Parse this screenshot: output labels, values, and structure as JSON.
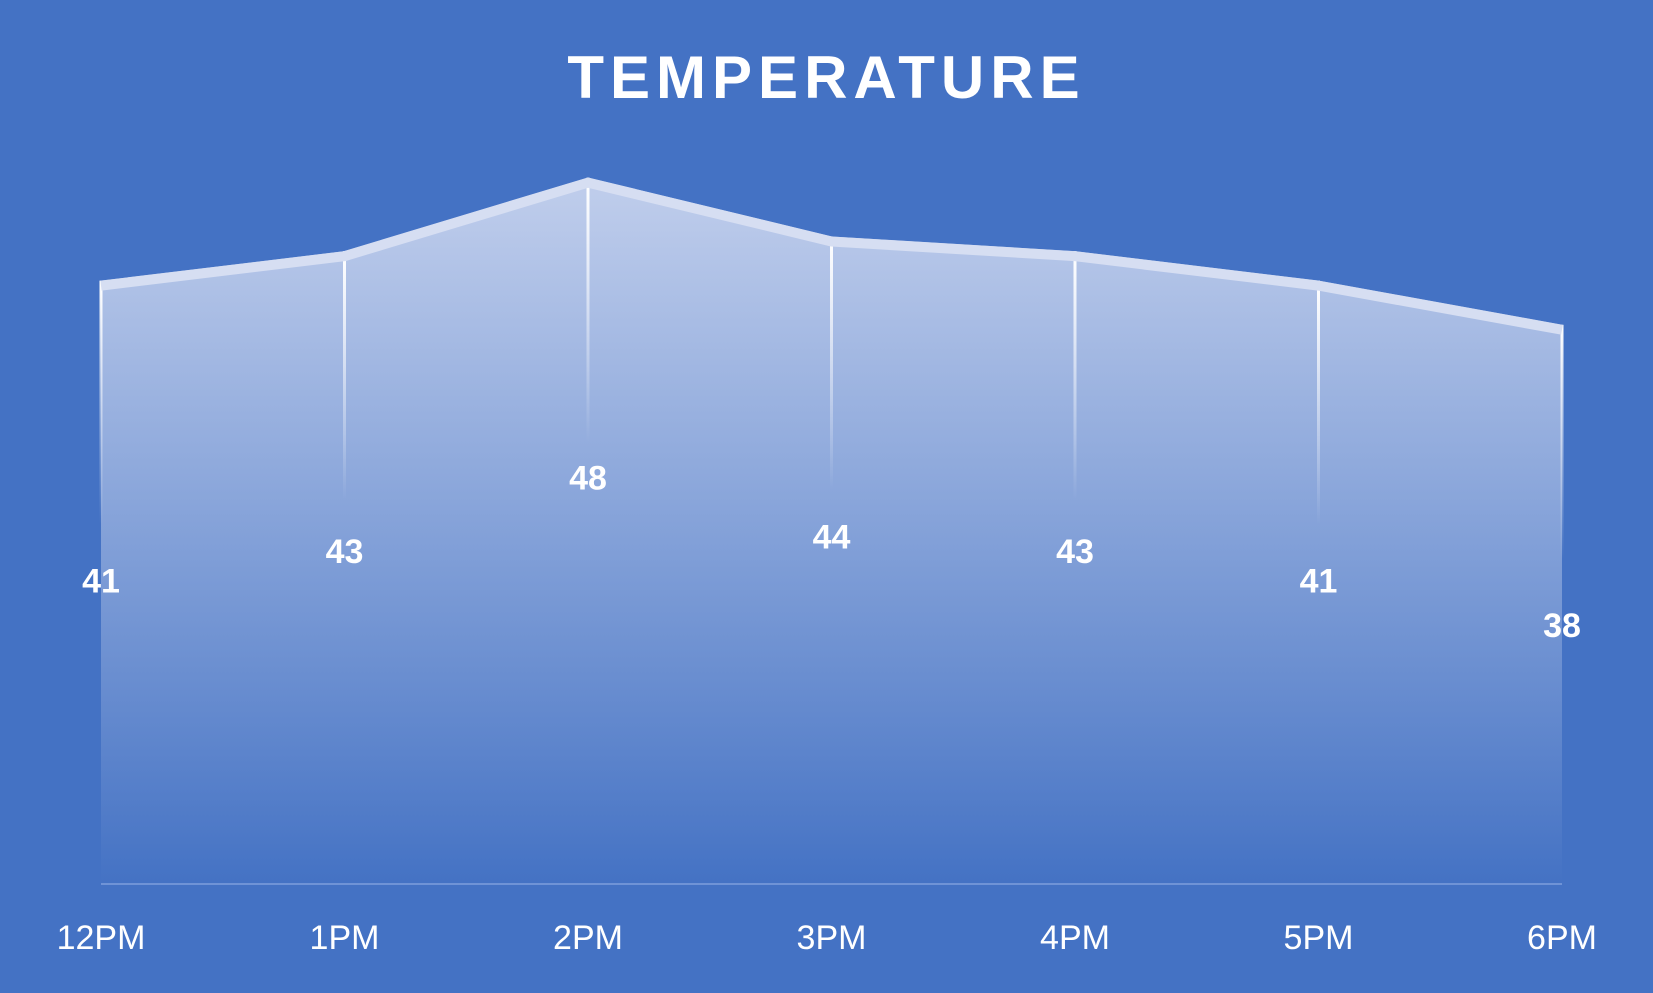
{
  "chart_data": {
    "type": "area",
    "title": "TEMPERATURE",
    "categories": [
      "12PM",
      "1PM",
      "2PM",
      "3PM",
      "4PM",
      "5PM",
      "6PM"
    ],
    "values": [
      41,
      43,
      48,
      44,
      43,
      41,
      38
    ],
    "xlabel": "",
    "ylabel": "",
    "ylim": [
      0,
      60
    ],
    "grid": false,
    "legend": "none",
    "colors": {
      "background": "#4472C4",
      "fill_top": "#C7D3EE",
      "fill_bottom": "#4472C4",
      "line": "#D6DEF2",
      "text": "#FFFFFF"
    }
  }
}
